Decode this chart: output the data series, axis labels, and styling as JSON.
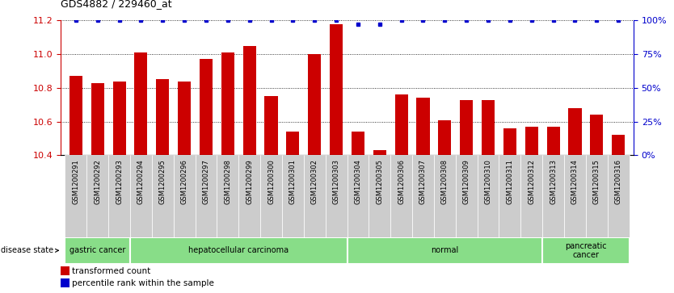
{
  "title": "GDS4882 / 229460_at",
  "samples": [
    "GSM1200291",
    "GSM1200292",
    "GSM1200293",
    "GSM1200294",
    "GSM1200295",
    "GSM1200296",
    "GSM1200297",
    "GSM1200298",
    "GSM1200299",
    "GSM1200300",
    "GSM1200301",
    "GSM1200302",
    "GSM1200303",
    "GSM1200304",
    "GSM1200305",
    "GSM1200306",
    "GSM1200307",
    "GSM1200308",
    "GSM1200309",
    "GSM1200310",
    "GSM1200311",
    "GSM1200312",
    "GSM1200313",
    "GSM1200314",
    "GSM1200315",
    "GSM1200316"
  ],
  "bar_values": [
    10.87,
    10.83,
    10.84,
    11.01,
    10.85,
    10.84,
    10.97,
    11.01,
    11.05,
    10.75,
    10.54,
    11.0,
    11.18,
    10.54,
    10.43,
    10.76,
    10.74,
    10.61,
    10.73,
    10.73,
    10.56,
    10.57,
    10.57,
    10.68,
    10.64,
    10.52
  ],
  "percentile_values": [
    100,
    100,
    100,
    100,
    100,
    100,
    100,
    100,
    100,
    100,
    100,
    100,
    100,
    97,
    97,
    100,
    100,
    100,
    100,
    100,
    100,
    100,
    100,
    100,
    100,
    100
  ],
  "ylim_left": [
    10.4,
    11.2
  ],
  "ylim_right": [
    0,
    100
  ],
  "yticks_left": [
    10.4,
    10.6,
    10.8,
    11.0,
    11.2
  ],
  "yticks_right": [
    0,
    25,
    50,
    75,
    100
  ],
  "bar_color": "#cc0000",
  "dot_color": "#0000cc",
  "bg_color": "#ffffff",
  "grid_color": "#000000",
  "disease_groups": [
    {
      "label": "gastric cancer",
      "start": 0,
      "end": 3
    },
    {
      "label": "hepatocellular carcinoma",
      "start": 3,
      "end": 13
    },
    {
      "label": "normal",
      "start": 13,
      "end": 22
    },
    {
      "label": "pancreatic\ncancer",
      "start": 22,
      "end": 26
    }
  ],
  "disease_group_color": "#88dd88",
  "disease_group_border": "#ffffff",
  "xtick_bg": "#cccccc",
  "disease_state_label": "disease state",
  "legend_bar_label": "transformed count",
  "legend_dot_label": "percentile rank within the sample",
  "tick_label_color_left": "#cc0000",
  "tick_label_color_right": "#0000cc"
}
